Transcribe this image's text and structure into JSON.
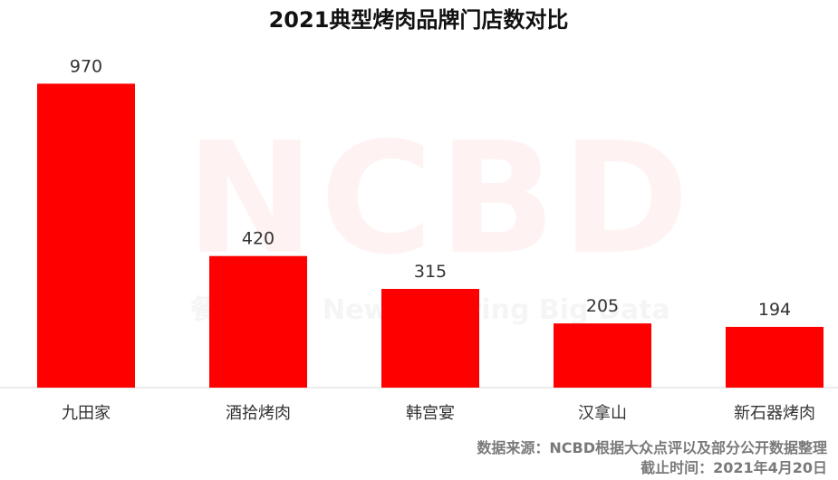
{
  "colors": {
    "bar": "#ff0000",
    "axis": "#d9d9d9",
    "text": "#333333",
    "source_text": "#7a7a7a"
  },
  "watermark": {
    "main": "NCBD",
    "sub": "New Catering Big Data",
    "prefix": "餐"
  },
  "chart_data": {
    "type": "bar",
    "title": "2021典型烤肉品牌门店数对比",
    "xlabel": "",
    "ylabel": "",
    "categories": [
      "九田家",
      "酒拾烤肉",
      "韩宫宴",
      "汉拿山",
      "新石器烤肉"
    ],
    "values": [
      970,
      420,
      315,
      205,
      194
    ],
    "ylim": [
      0,
      1000
    ],
    "grid": false,
    "legend": "none",
    "source_line1": "数据来源：NCBD根据大众点评以及部分公开数据整理",
    "source_line2": "截止时间：2021年4月20日"
  }
}
